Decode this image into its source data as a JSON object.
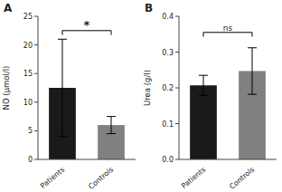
{
  "chart_data": [
    {
      "type": "bar",
      "title": "A",
      "categories": [
        "Patients",
        "Controls"
      ],
      "values": [
        12.5,
        6.0
      ],
      "errors": [
        8.5,
        1.5
      ],
      "colors": [
        "#1a1a1a",
        "#808080"
      ],
      "ylabel": "NO (μmol/l)",
      "ylim": [
        0,
        25
      ],
      "yticks": [
        0,
        5,
        10,
        15,
        20,
        25
      ],
      "annotations": [
        {
          "text": "*",
          "y": 22.5,
          "between": [
            "Patients",
            "Controls"
          ]
        }
      ]
    },
    {
      "type": "bar",
      "title": "B",
      "categories": [
        "Patients",
        "Controls"
      ],
      "values": [
        0.207,
        0.247
      ],
      "errors": [
        0.028,
        0.065
      ],
      "colors": [
        "#1a1a1a",
        "#808080"
      ],
      "ylabel": "Urea (g/l)",
      "ylim": [
        0,
        0.4
      ],
      "yticks": [
        {
          "value": 0.0,
          "label": "0.0"
        },
        0.1,
        0.2,
        0.3,
        0.4
      ],
      "annotations": [
        {
          "text": "ns",
          "y": 0.355,
          "between": [
            "Patients",
            "Controls"
          ]
        }
      ]
    }
  ]
}
